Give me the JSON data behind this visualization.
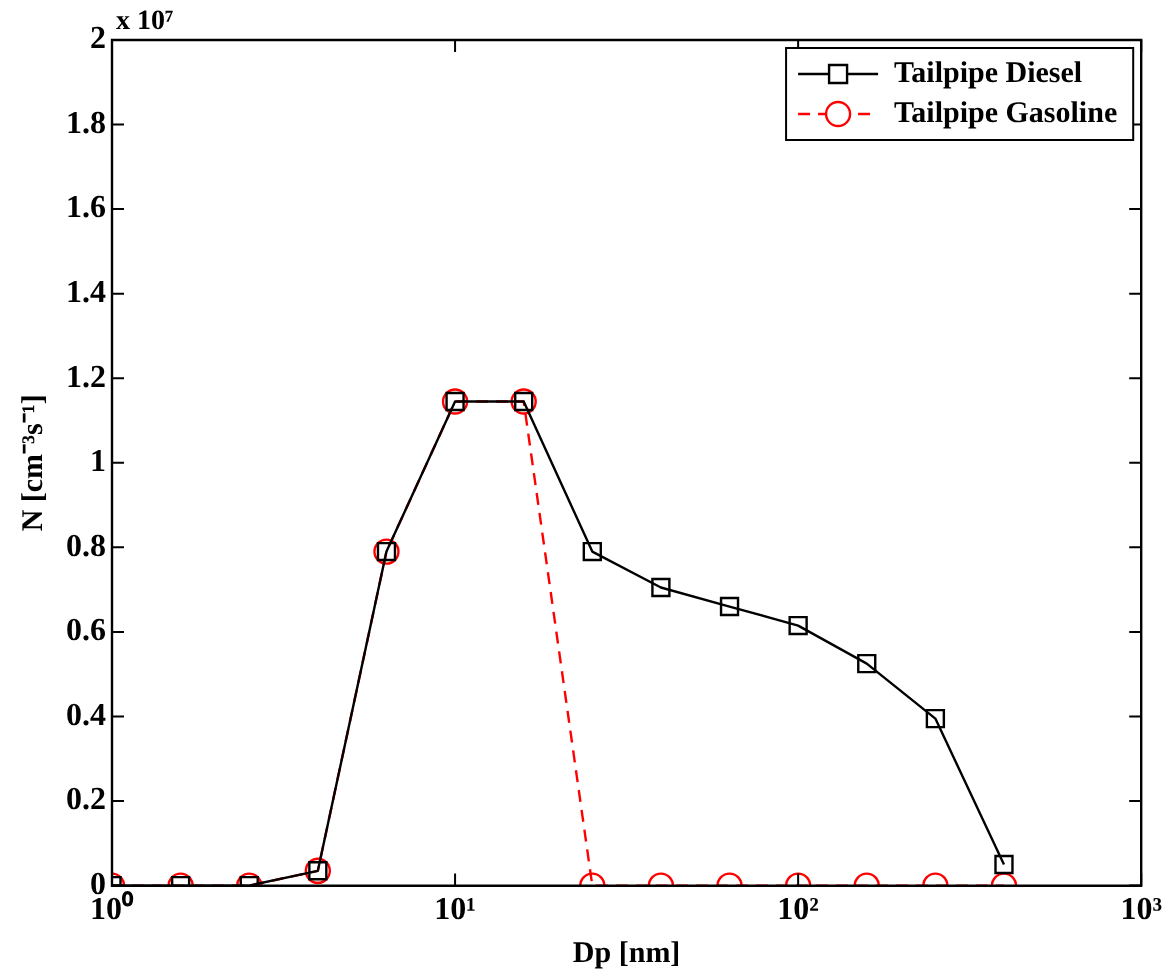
{
  "chart_data": {
    "type": "line",
    "xlabel": "Dp [nm]",
    "ylabel": "N [cm⁻³s⁻¹]",
    "annotations": [
      "x 10⁷"
    ],
    "log": "x",
    "x": [
      1,
      1.585,
      2.512,
      3.981,
      6.31,
      10,
      15.85,
      25.12,
      39.81,
      63.1,
      100,
      158.5,
      251.2,
      398.1
    ],
    "xlim": [
      1,
      1000
    ],
    "xticks": [
      {
        "value": 1,
        "label": "10⁰"
      },
      {
        "value": 10,
        "label": "10¹"
      },
      {
        "value": 100,
        "label": "10²"
      },
      {
        "value": 1000,
        "label": "10³"
      }
    ],
    "ylim": [
      0,
      2
    ],
    "yticks": [
      0,
      0.2,
      0.4,
      0.6,
      0.8,
      1,
      1.2,
      1.4,
      1.6,
      1.8,
      2
    ],
    "grid": false,
    "legend": "top right",
    "series": [
      {
        "name": "Tailpipe Diesel",
        "color": "#000000",
        "marker": "square",
        "line_style": "solid",
        "values": [
          0,
          0,
          0,
          0.035,
          0.79,
          1.145,
          1.145,
          0.79,
          0.705,
          0.66,
          0.615,
          0.525,
          0.395,
          0.05
        ]
      },
      {
        "name": "Tailpipe Gasoline",
        "color": "#ff0000",
        "marker": "circle",
        "line_style": "dashed",
        "values": [
          0,
          0,
          0,
          0.035,
          0.79,
          1.145,
          1.145,
          0,
          0,
          0,
          0,
          0,
          0,
          0
        ]
      }
    ]
  }
}
